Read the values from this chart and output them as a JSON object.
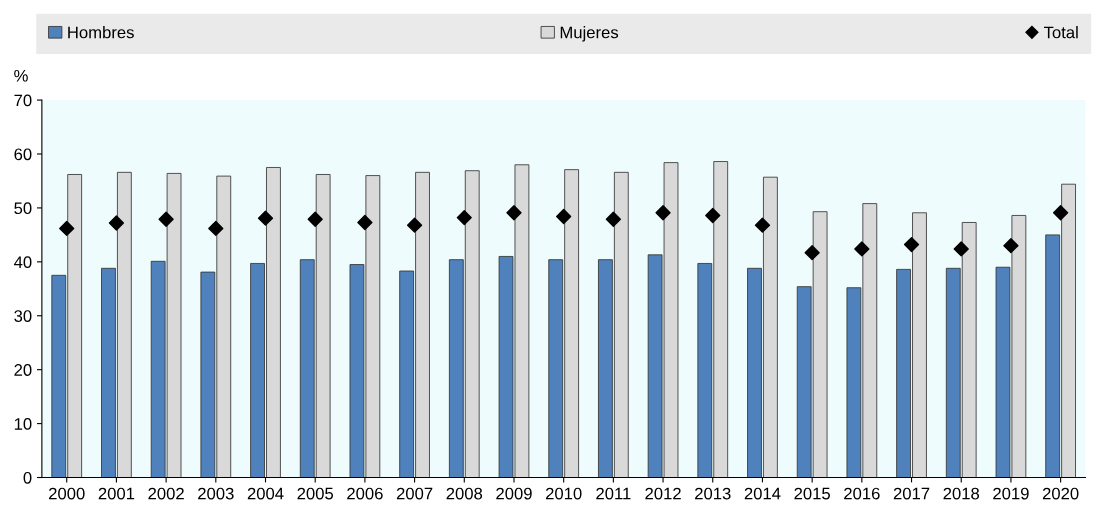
{
  "chart_data": {
    "type": "bar",
    "ylabel": "%",
    "categories": [
      "2000",
      "2001",
      "2002",
      "2003",
      "2004",
      "2005",
      "2006",
      "2007",
      "2008",
      "2009",
      "2010",
      "2011",
      "2012",
      "2013",
      "2014",
      "2015",
      "2016",
      "2017",
      "2018",
      "2019",
      "2020"
    ],
    "series": [
      {
        "name": "Hombres",
        "color": "#4f81bd",
        "values": [
          37.5,
          38.8,
          40.1,
          38.1,
          39.7,
          40.4,
          39.5,
          38.3,
          40.4,
          41.0,
          40.4,
          40.4,
          41.3,
          39.7,
          38.8,
          35.4,
          35.2,
          38.6,
          38.8,
          39.0,
          45.0
        ]
      },
      {
        "name": "Mujeres",
        "color": "#d9d9d9",
        "values": [
          56.2,
          56.6,
          56.4,
          55.9,
          57.5,
          56.2,
          56.0,
          56.6,
          56.9,
          58.0,
          57.1,
          56.6,
          58.4,
          58.6,
          55.7,
          49.3,
          50.8,
          49.1,
          47.3,
          48.6,
          54.4
        ]
      },
      {
        "name": "Total",
        "type": "scatter",
        "marker": "diamond",
        "color": "#000000",
        "values": [
          46.2,
          47.2,
          47.9,
          46.2,
          48.1,
          47.9,
          47.3,
          46.8,
          48.2,
          49.1,
          48.4,
          47.9,
          49.1,
          48.6,
          46.8,
          41.7,
          42.4,
          43.2,
          42.4,
          43.0,
          49.1
        ]
      }
    ],
    "ylim": [
      0,
      70
    ],
    "yticks": [
      0,
      10,
      20,
      30,
      40,
      50,
      60,
      70
    ],
    "grid": false,
    "legend": "top"
  }
}
